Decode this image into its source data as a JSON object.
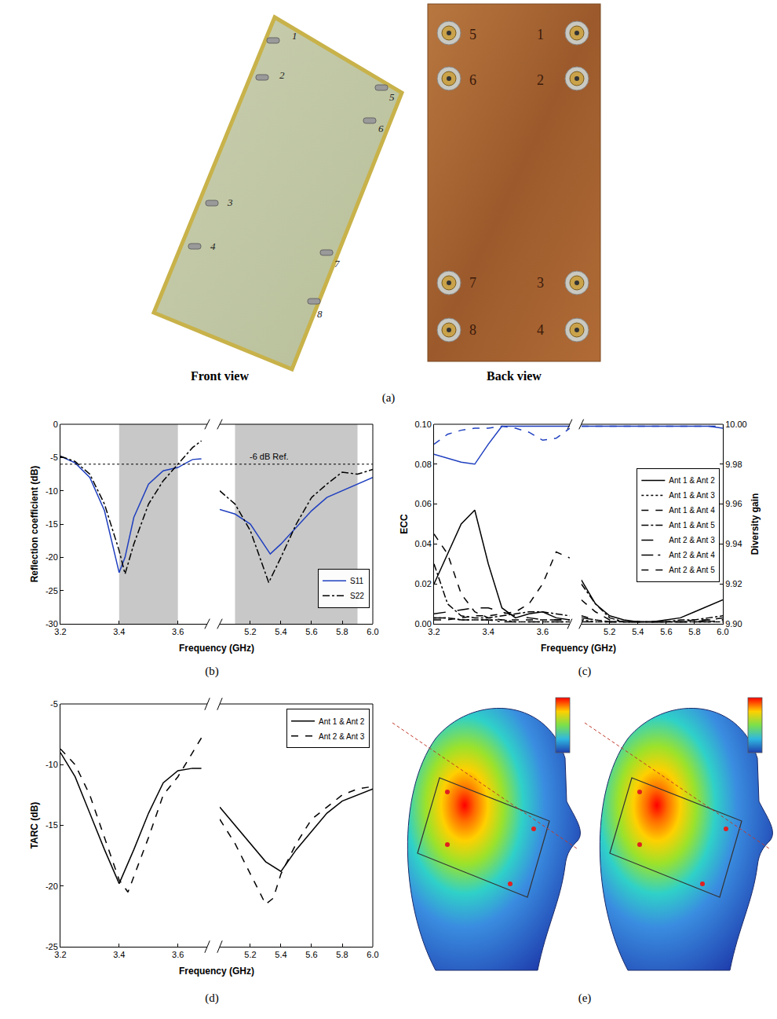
{
  "figure": {
    "panel_labels": [
      "(a)",
      "(b)",
      "(c)",
      "(d)",
      "(e)"
    ],
    "photos": {
      "front_caption": "Front view",
      "back_caption": "Back view",
      "front_port_labels": [
        "1",
        "2",
        "3",
        "4",
        "5",
        "6",
        "7",
        "8"
      ],
      "back_port_labels": [
        "5",
        "6",
        "7",
        "8",
        "1",
        "2",
        "3",
        "4"
      ]
    }
  },
  "chart_data": [
    {
      "type": "line",
      "xlabel": "Frequency (GHz)",
      "ylabel": "Reflection coefficient (dB)",
      "xlim": [
        3.2,
        3.7
      ],
      "xticks": [
        3.2,
        3.4,
        3.6
      ],
      "x2lim": [
        5.0,
        6.0
      ],
      "x2ticks": [
        5.2,
        5.4,
        5.6,
        5.8,
        {
          "value": 6,
          "label": "6.0"
        }
      ],
      "ylim": [
        -30,
        0
      ],
      "yticks": [
        -30,
        -25,
        -20,
        -15,
        -10,
        -5,
        0
      ],
      "bands": [
        [
          3.4,
          3.6
        ],
        [
          5.1,
          5.9
        ]
      ],
      "ref_line": {
        "value": -6,
        "label": "-6 dB Ref."
      },
      "legend": "lower right",
      "series": [
        {
          "name": "S11",
          "color": "#1f3fbf",
          "line_style": "solid",
          "x": [
            3.2,
            3.25,
            3.3,
            3.35,
            3.4,
            3.42,
            3.45,
            3.5,
            3.55,
            3.6,
            3.62,
            3.65,
            3.68,
            5.0,
            5.1,
            5.2,
            5.3,
            5.33,
            5.4,
            5.5,
            5.6,
            5.7,
            5.8,
            5.9,
            6.0
          ],
          "values": [
            -4.8,
            -5.8,
            -8,
            -13,
            -22.3,
            -20,
            -14,
            -9,
            -7,
            -6.5,
            -6,
            -5.3,
            -5.2,
            -12.8,
            -13.5,
            -15,
            -18.5,
            -19.5,
            -18,
            -15.5,
            -13,
            -11,
            -10,
            -9,
            -8
          ]
        },
        {
          "name": "S22",
          "color": "#000000",
          "line_style": "dashdot",
          "x": [
            3.2,
            3.25,
            3.3,
            3.35,
            3.4,
            3.42,
            3.45,
            3.5,
            3.55,
            3.6,
            3.65,
            3.68,
            5.0,
            5.1,
            5.2,
            5.3,
            5.32,
            5.4,
            5.5,
            5.6,
            5.7,
            5.8,
            5.9,
            6.0
          ],
          "values": [
            -4.8,
            -5.6,
            -7.5,
            -12,
            -19,
            -22.5,
            -18,
            -12,
            -8.5,
            -6,
            -3.5,
            -2.5,
            -10,
            -12,
            -16,
            -22.5,
            -23.8,
            -20,
            -15,
            -11,
            -9,
            -7.2,
            -7.5,
            -6.8
          ]
        }
      ]
    },
    {
      "type": "line",
      "xlabel": "Frequency (GHz)",
      "ylabel": "ECC",
      "y2label": "Diversity gain",
      "xlim": [
        3.2,
        3.7
      ],
      "xticks": [
        3.2,
        3.4,
        3.6
      ],
      "x2lim": [
        5.0,
        6.0
      ],
      "x2ticks": [
        5.2,
        5.4,
        5.6,
        5.8,
        {
          "value": 6,
          "label": "6.0"
        }
      ],
      "ylim": [
        0,
        0.1
      ],
      "yticks": [
        {
          "value": 0,
          "label": "0.00"
        },
        {
          "value": 0.02,
          "label": "0.02"
        },
        {
          "value": 0.04,
          "label": "0.04"
        },
        {
          "value": 0.06,
          "label": "0.06"
        },
        {
          "value": 0.08,
          "label": "0.08"
        },
        {
          "value": 0.1,
          "label": "0.10"
        }
      ],
      "y2lim": [
        9.9,
        10.0
      ],
      "y2ticks": [
        {
          "value": 9.9,
          "label": "9.90"
        },
        {
          "value": 9.92,
          "label": "9.92"
        },
        {
          "value": 9.94,
          "label": "9.94"
        },
        {
          "value": 9.96,
          "label": "9.96"
        },
        {
          "value": 9.98,
          "label": "9.98"
        },
        {
          "value": 10,
          "label": "10.00"
        }
      ],
      "legend": "right",
      "series": [
        {
          "name": "Ant 1 & Ant 2",
          "color": "#000000",
          "line_style": "solid",
          "x": [
            3.2,
            3.25,
            3.3,
            3.35,
            3.4,
            3.45,
            3.5,
            3.55,
            3.6,
            3.65,
            3.7,
            5.0,
            5.1,
            5.2,
            5.3,
            5.4,
            5.5,
            5.6,
            5.7,
            5.8,
            5.9,
            6.0
          ],
          "values": [
            0.02,
            0.035,
            0.05,
            0.057,
            0.03,
            0.008,
            0.003,
            0.005,
            0.006,
            0.003,
            0.002,
            0.022,
            0.01,
            0.004,
            0.002,
            0.001,
            0.001,
            0.002,
            0.003,
            0.006,
            0.009,
            0.012
          ]
        },
        {
          "name": "Ant 1 & Ant 3",
          "color": "#000000",
          "line_style": "dot",
          "x": [
            3.2,
            3.25,
            3.3,
            3.35,
            3.4,
            3.45,
            3.5,
            3.55,
            3.6,
            3.65,
            3.7,
            5.0,
            5.1,
            5.2,
            5.3,
            5.4,
            5.5,
            5.6,
            5.7,
            5.8,
            5.9,
            6.0
          ],
          "values": [
            0.003,
            0.003,
            0.002,
            0.002,
            0.002,
            0.002,
            0.001,
            0.001,
            0.001,
            0.001,
            0.001,
            0.002,
            0.001,
            0.001,
            0.001,
            0.001,
            0.001,
            0.001,
            0.001,
            0.001,
            0.001,
            0.001
          ]
        },
        {
          "name": "Ant 1 & Ant 4",
          "color": "#000000",
          "line_style": "dash",
          "x": [
            3.2,
            3.25,
            3.3,
            3.35,
            3.4,
            3.45,
            3.5,
            3.55,
            3.6,
            3.65,
            3.7,
            5.0,
            5.1,
            5.2,
            5.3,
            5.4,
            5.5,
            5.6,
            5.7,
            5.8,
            5.9,
            6.0
          ],
          "values": [
            0.045,
            0.035,
            0.015,
            0.006,
            0.003,
            0.002,
            0.002,
            0.002,
            0.002,
            0.002,
            0.002,
            0.004,
            0.002,
            0.001,
            0.001,
            0.001,
            0.001,
            0.001,
            0.001,
            0.001,
            0.001,
            0.002
          ]
        },
        {
          "name": "Ant 1 & Ant 5",
          "color": "#000000",
          "line_style": "dashdot",
          "x": [
            3.2,
            3.25,
            3.3,
            3.35,
            3.4,
            3.45,
            3.5,
            3.55,
            3.6,
            3.65,
            3.7,
            5.0,
            5.1,
            5.2,
            5.3,
            5.4,
            5.5,
            5.6,
            5.7,
            5.8,
            5.9,
            6.0
          ],
          "values": [
            0.03,
            0.01,
            0.004,
            0.003,
            0.003,
            0.004,
            0.005,
            0.006,
            0.006,
            0.005,
            0.004,
            0.02,
            0.01,
            0.003,
            0.001,
            0.001,
            0.001,
            0.001,
            0.002,
            0.002,
            0.003,
            0.004
          ]
        },
        {
          "name": "Ant 2 & Ant 3",
          "color": "#000000",
          "line_style": "longdash",
          "x": [
            3.2,
            3.25,
            3.3,
            3.35,
            3.4,
            3.45,
            3.5,
            3.55,
            3.6,
            3.65,
            3.7,
            5.0,
            5.1,
            5.2,
            5.3,
            5.4,
            5.5,
            5.6,
            5.7,
            5.8,
            5.9,
            6.0
          ],
          "values": [
            0.005,
            0.006,
            0.007,
            0.008,
            0.008,
            0.006,
            0.004,
            0.003,
            0.002,
            0.002,
            0.002,
            0.003,
            0.002,
            0.001,
            0.001,
            0.001,
            0.001,
            0.001,
            0.001,
            0.001,
            0.002,
            0.002
          ]
        },
        {
          "name": "Ant 2 & Ant 4",
          "color": "#000000",
          "line_style": "longdashdot",
          "x": [
            3.2,
            3.25,
            3.3,
            3.35,
            3.4,
            3.45,
            3.5,
            3.55,
            3.6,
            3.65,
            3.7,
            5.0,
            5.1,
            5.2,
            5.3,
            5.4,
            5.5,
            5.6,
            5.7,
            5.8,
            5.9,
            6.0
          ],
          "values": [
            0.003,
            0.003,
            0.002,
            0.002,
            0.002,
            0.001,
            0.001,
            0.001,
            0.001,
            0.001,
            0.001,
            0.001,
            0.001,
            0.001,
            0.001,
            0.001,
            0.001,
            0.001,
            0.001,
            0.001,
            0.001,
            0.001
          ]
        },
        {
          "name": "Ant 2 & Ant 5",
          "color": "#000000",
          "line_style": "dash",
          "x": [
            3.2,
            3.25,
            3.3,
            3.35,
            3.4,
            3.45,
            3.5,
            3.55,
            3.6,
            3.65,
            3.7,
            5.0,
            5.1,
            5.2,
            5.3,
            5.4,
            5.5,
            5.6,
            5.7,
            5.8,
            5.9,
            6.0
          ],
          "values": [
            0.002,
            0.002,
            0.003,
            0.004,
            0.004,
            0.005,
            0.006,
            0.01,
            0.02,
            0.036,
            0.033,
            0.012,
            0.006,
            0.002,
            0.001,
            0.001,
            0.001,
            0.001,
            0.001,
            0.002,
            0.002,
            0.003
          ]
        },
        {
          "color": "#1f3fbf",
          "line_style": "solid",
          "axis": "y2",
          "x": [
            3.2,
            3.25,
            3.3,
            3.35,
            3.4,
            3.45,
            3.5,
            3.55,
            3.6,
            3.65,
            3.7,
            5.0,
            5.1,
            5.2,
            5.3,
            5.4,
            5.5,
            5.6,
            5.7,
            5.8,
            5.9,
            6.0
          ],
          "values": [
            9.985,
            9.983,
            9.981,
            9.98,
            9.99,
            9.999,
            9.999,
            9.999,
            9.999,
            9.999,
            9.999,
            9.999,
            9.999,
            9.999,
            9.999,
            9.999,
            9.999,
            9.999,
            9.999,
            9.999,
            9.999,
            9.998
          ]
        },
        {
          "color": "#1f3fbf",
          "line_style": "dash",
          "axis": "y2",
          "x": [
            3.2,
            3.25,
            3.3,
            3.35,
            3.4,
            3.45,
            3.5,
            3.55,
            3.6,
            3.65,
            3.7,
            5.0,
            5.1,
            5.2,
            5.3,
            5.4,
            5.5,
            5.6,
            5.7,
            5.8,
            5.9,
            6.0
          ],
          "values": [
            9.99,
            9.995,
            9.997,
            9.998,
            9.998,
            9.999,
            9.998,
            9.996,
            9.992,
            9.993,
            9.998,
            9.999,
            9.999,
            9.999,
            9.999,
            9.999,
            9.999,
            9.999,
            9.999,
            9.999,
            9.999,
            9.999
          ]
        }
      ]
    },
    {
      "type": "line",
      "xlabel": "Frequency (GHz)",
      "ylabel": "TARC (dB)",
      "xlim": [
        3.2,
        3.7
      ],
      "xticks": [
        3.2,
        3.4,
        3.6
      ],
      "x2lim": [
        5.0,
        6.0
      ],
      "x2ticks": [
        5.2,
        5.4,
        5.6,
        5.8,
        {
          "value": 6,
          "label": "6.0"
        }
      ],
      "ylim": [
        -25,
        -5
      ],
      "yticks": [
        -25,
        -20,
        -15,
        -10,
        -5
      ],
      "legend": "upper right",
      "series": [
        {
          "name": "Ant 1 & Ant 2",
          "color": "#000000",
          "line_style": "solid",
          "x": [
            3.2,
            3.25,
            3.3,
            3.35,
            3.4,
            3.45,
            3.5,
            3.55,
            3.6,
            3.65,
            3.68,
            5.0,
            5.1,
            5.2,
            5.3,
            5.4,
            5.5,
            5.6,
            5.7,
            5.8,
            5.9,
            6.0
          ],
          "values": [
            -9,
            -11,
            -14,
            -17,
            -19.8,
            -17,
            -14,
            -11.5,
            -10.5,
            -10.3,
            -10.3,
            -13.5,
            -15,
            -16.5,
            -18,
            -18.8,
            -17,
            -15.5,
            -14,
            -13,
            -12.5,
            -12
          ]
        },
        {
          "name": "Ant 2 & Ant 3",
          "color": "#000000",
          "line_style": "dash",
          "x": [
            3.2,
            3.25,
            3.3,
            3.35,
            3.4,
            3.43,
            3.5,
            3.55,
            3.6,
            3.65,
            3.68,
            5.0,
            5.1,
            5.2,
            5.3,
            5.35,
            5.4,
            5.5,
            5.6,
            5.7,
            5.8,
            5.9,
            6.0
          ],
          "values": [
            -8.7,
            -10,
            -12.5,
            -16,
            -19.5,
            -20.5,
            -16,
            -12.5,
            -11,
            -9,
            -7.8,
            -14.5,
            -16.5,
            -19,
            -21.5,
            -21,
            -19,
            -16.5,
            -14.5,
            -13.5,
            -12.5,
            -12,
            -11.8
          ]
        }
      ]
    }
  ]
}
